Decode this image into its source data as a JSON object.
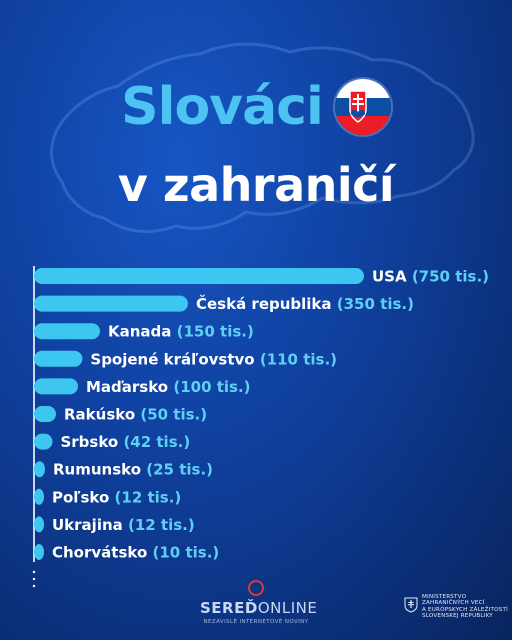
{
  "title_line1": "Slováci",
  "title_line2": "v zahraničí",
  "colors": {
    "background": "#0f3f9c",
    "bar": "#3cc6f0",
    "label": "#ffffff",
    "value": "#5fd0f5"
  },
  "chart_data": {
    "type": "bar",
    "orientation": "horizontal",
    "categories": [
      "USA",
      "Česká republika",
      "Kanada",
      "Spojené kráľovstvo",
      "Maďarsko",
      "Rakúsko",
      "Srbsko",
      "Rumunsko",
      "Poľsko",
      "Ukrajina",
      "Chorvátsko"
    ],
    "values": [
      750,
      350,
      150,
      110,
      100,
      50,
      42,
      25,
      12,
      12,
      10
    ],
    "value_labels": [
      "(750 tis.)",
      "(350 tis.)",
      "(150 tis.)",
      "(110 tis.)",
      "(100 tis.)",
      "(50 tis.)",
      "(42 tis.)",
      "(25 tis.)",
      "(12 tis.)",
      "(12 tis.)",
      "(10 tis.)"
    ],
    "xlim": [
      0,
      750
    ],
    "grid": false,
    "legend": "none"
  },
  "footer": {
    "brand_bold": "SEREĎ",
    "brand_light": "ONLINE",
    "brand_sub": "NEZÁVISLÉ INTERNETOVÉ NOVINY",
    "ministry": "MINISTERSTVO\nZAHRANIČNÝCH VECÍ\nA EURÓPSKYCH ZÁLEŽITOSTÍ\nSLOVENSKEJ REPUBLIKY"
  }
}
